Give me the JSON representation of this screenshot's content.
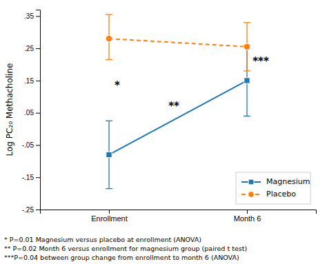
{
  "chart_data": {
    "type": "line",
    "categories": [
      "Enrollment",
      "Month 6"
    ],
    "series": [
      {
        "name": "Magnesium",
        "values": [
          -0.08,
          0.15
        ],
        "error_lo": [
          0.105,
          0.11
        ],
        "error_hi": [
          0.105,
          0.11
        ],
        "marker": "square",
        "line_style": "solid"
      },
      {
        "name": "Placebo",
        "values": [
          0.28,
          0.255
        ],
        "error_lo": [
          0.065,
          0.075
        ],
        "error_hi": [
          0.075,
          0.075
        ],
        "marker": "circle",
        "line_style": "dashed"
      }
    ],
    "ylabel": "Log PC₂₀ Methacholine",
    "ylim": [
      -0.25,
      0.37
    ],
    "yticks": [
      {
        "value": -0.25,
        "label": "-.25"
      },
      {
        "value": -0.15,
        "label": "-.15"
      },
      {
        "value": -0.05,
        "label": "-.05"
      },
      {
        "value": 0.05,
        "label": ".05"
      },
      {
        "value": 0.15,
        "label": ".15"
      },
      {
        "value": 0.25,
        "label": ".25"
      },
      {
        "value": 0.35,
        "label": ".35"
      }
    ],
    "grid": false,
    "legend": "lower right",
    "annotations": [
      {
        "text": "*",
        "x": 0.06,
        "y": 0.125
      },
      {
        "text": "**",
        "x": 0.47,
        "y": 0.06
      },
      {
        "text": "***",
        "x": 1.1,
        "y": 0.2
      }
    ],
    "footnotes": [
      "* P=0.01 Magnesium versus placebo at enrollment (ANOVA)",
      "** P=0.02 Month 6 versus enrollment for magnesium group (paired t test)",
      "***P=0.04 between group change from enrollment to month 6 (ANOVA)"
    ]
  }
}
